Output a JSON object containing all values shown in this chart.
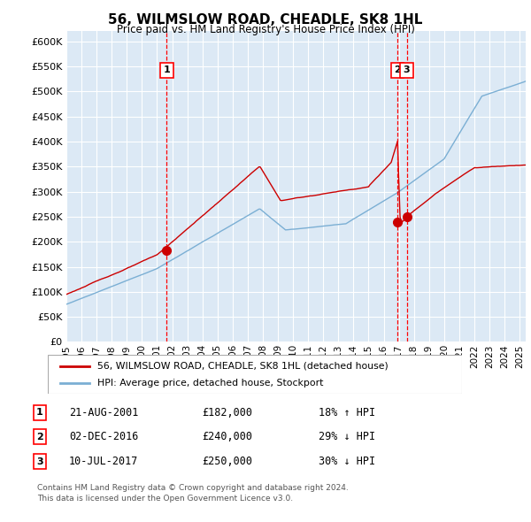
{
  "title": "56, WILMSLOW ROAD, CHEADLE, SK8 1HL",
  "subtitle": "Price paid vs. HM Land Registry's House Price Index (HPI)",
  "ylabel_ticks": [
    "£0",
    "£50K",
    "£100K",
    "£150K",
    "£200K",
    "£250K",
    "£300K",
    "£350K",
    "£400K",
    "£450K",
    "£500K",
    "£550K",
    "£600K"
  ],
  "ytick_values": [
    0,
    50000,
    100000,
    150000,
    200000,
    250000,
    300000,
    350000,
    400000,
    450000,
    500000,
    550000,
    600000
  ],
  "ylim": [
    0,
    620000
  ],
  "xlim_start": 1995.0,
  "xlim_end": 2025.4,
  "plot_bg_color": "#dce9f5",
  "grid_color": "#ffffff",
  "red_line_color": "#cc0000",
  "blue_line_color": "#7bafd4",
  "sale1_x": 2001.645,
  "sale1_y": 182000,
  "sale1_label": "1",
  "sale1_date": "21-AUG-2001",
  "sale1_price": "£182,000",
  "sale1_hpi": "18% ↑ HPI",
  "sale2_x": 2016.917,
  "sale2_y": 240000,
  "sale2_label": "2",
  "sale2_date": "02-DEC-2016",
  "sale2_price": "£240,000",
  "sale2_hpi": "29% ↓ HPI",
  "sale3_x": 2017.528,
  "sale3_y": 250000,
  "sale3_label": "3",
  "sale3_date": "10-JUL-2017",
  "sale3_price": "£250,000",
  "sale3_hpi": "30% ↓ HPI",
  "legend_label_red": "56, WILMSLOW ROAD, CHEADLE, SK8 1HL (detached house)",
  "legend_label_blue": "HPI: Average price, detached house, Stockport",
  "footer_line1": "Contains HM Land Registry data © Crown copyright and database right 2024.",
  "footer_line2": "This data is licensed under the Open Government Licence v3.0."
}
